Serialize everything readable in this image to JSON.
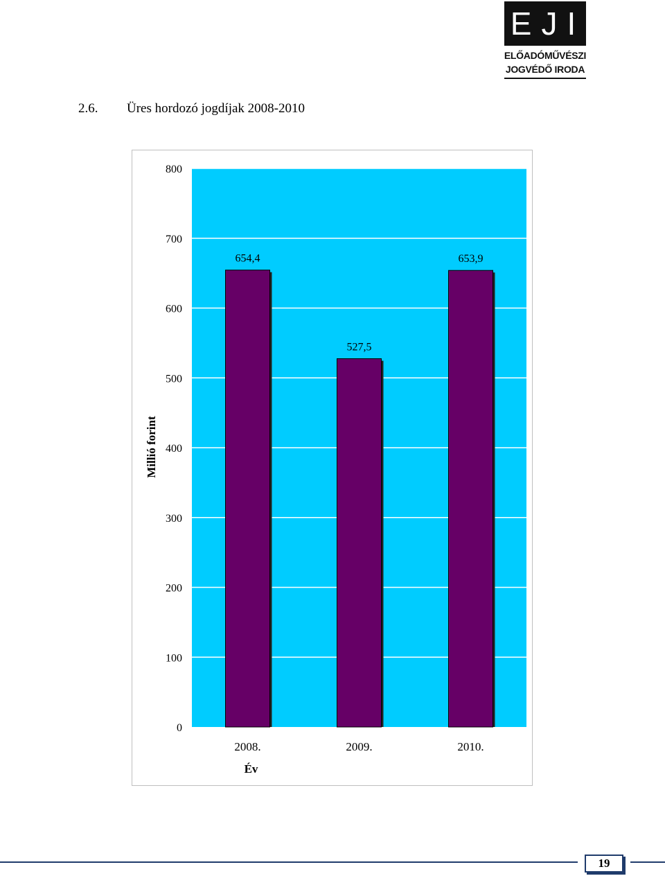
{
  "logo": {
    "letters": "EJI",
    "line1": "ELŐADÓMŰVÉSZI",
    "line2": "JOGVÉDŐ IRODA"
  },
  "section": {
    "number": "2.6.",
    "title": "Üres hordozó jogdíjak 2008-2010"
  },
  "chart_data": {
    "type": "bar",
    "categories": [
      "2008.",
      "2009.",
      "2010."
    ],
    "values": [
      654.4,
      527.5,
      653.9
    ],
    "value_labels": [
      "654,4",
      "527,5",
      "653,9"
    ],
    "xlabel": "Év",
    "ylabel": "Millió forint",
    "ylim": [
      0,
      800
    ],
    "yticks": [
      0,
      100,
      200,
      300,
      400,
      500,
      600,
      700,
      800
    ],
    "grid": true,
    "legend": "none",
    "colors": {
      "plot_background": "#00ccff",
      "bar": "#660066",
      "bar_edge": "#000000",
      "gridline": "#ffffff"
    }
  },
  "page": {
    "number": "19",
    "accent": "#1f3b6b"
  }
}
